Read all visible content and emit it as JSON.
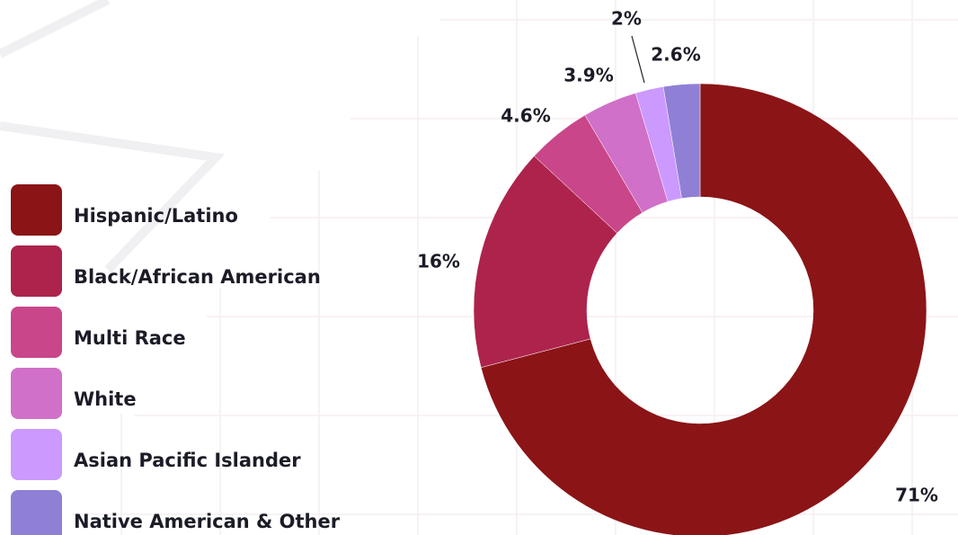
{
  "chart_data": {
    "type": "donut",
    "categories": [
      "Hispanic/Latino",
      "Black/African American",
      "Multi Race",
      "White",
      "Asian Pacific Islander",
      "Native American & Other"
    ],
    "values": [
      71,
      16,
      4.6,
      3.9,
      2,
      2.6
    ],
    "value_labels": [
      "71%",
      "16%",
      "4.6%",
      "3.9%",
      "2%",
      "2.6%"
    ],
    "colors": [
      "#8b1416",
      "#ad234c",
      "#c9468a",
      "#d070c8",
      "#cc99ff",
      "#8f80d6"
    ],
    "legend": "left"
  }
}
